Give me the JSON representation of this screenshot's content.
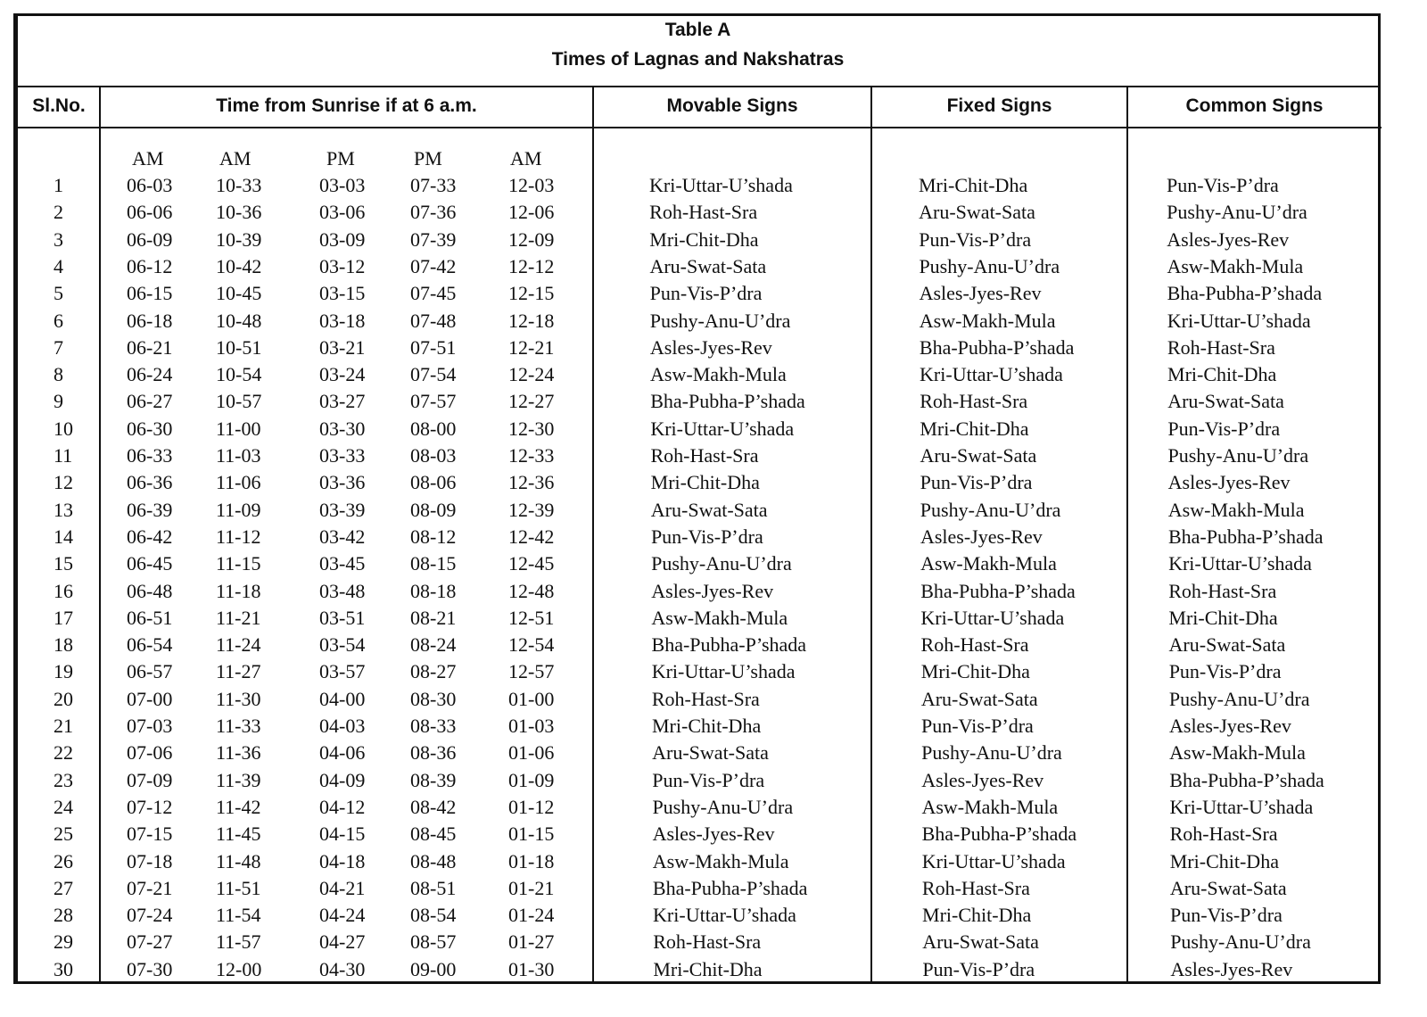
{
  "title": "Table  A",
  "subtitle": "Times of Lagnas and Nakshatras",
  "headers": {
    "slno": "Sl.No.",
    "time": "Time from Sunrise if at 6 a.m.",
    "movable": "Movable Signs",
    "fixed": "Fixed Signs",
    "common": "Common Signs"
  },
  "time_subheaders": [
    "AM",
    "AM",
    "PM",
    "PM",
    "AM"
  ],
  "rows": [
    [
      "1",
      "06-03",
      "10-33",
      "03-03",
      "07-33",
      "12-03",
      "Kri-Uttar-U’shada",
      "Mri-Chit-Dha",
      "Pun-Vis-P’dra"
    ],
    [
      "2",
      "06-06",
      "10-36",
      "03-06",
      "07-36",
      "12-06",
      "Roh-Hast-Sra",
      "Aru-Swat-Sata",
      "Pushy-Anu-U’dra"
    ],
    [
      "3",
      "06-09",
      "10-39",
      "03-09",
      "07-39",
      "12-09",
      "Mri-Chit-Dha",
      "Pun-Vis-P’dra",
      "Asles-Jyes-Rev"
    ],
    [
      "4",
      "06-12",
      "10-42",
      "03-12",
      "07-42",
      "12-12",
      "Aru-Swat-Sata",
      "Pushy-Anu-U’dra",
      "Asw-Makh-Mula"
    ],
    [
      "5",
      "06-15",
      "10-45",
      "03-15",
      "07-45",
      "12-15",
      "Pun-Vis-P’dra",
      "Asles-Jyes-Rev",
      "Bha-Pubha-P’shada"
    ],
    [
      "6",
      "06-18",
      "10-48",
      "03-18",
      "07-48",
      "12-18",
      "Pushy-Anu-U’dra",
      "Asw-Makh-Mula",
      "Kri-Uttar-U’shada"
    ],
    [
      "7",
      "06-21",
      "10-51",
      "03-21",
      "07-51",
      "12-21",
      "Asles-Jyes-Rev",
      "Bha-Pubha-P’shada",
      "Roh-Hast-Sra"
    ],
    [
      "8",
      "06-24",
      "10-54",
      "03-24",
      "07-54",
      "12-24",
      "Asw-Makh-Mula",
      "Kri-Uttar-U’shada",
      "Mri-Chit-Dha"
    ],
    [
      "9",
      "06-27",
      "10-57",
      "03-27",
      "07-57",
      "12-27",
      "Bha-Pubha-P’shada",
      "Roh-Hast-Sra",
      "Aru-Swat-Sata"
    ],
    [
      "10",
      "06-30",
      "11-00",
      "03-30",
      "08-00",
      "12-30",
      "Kri-Uttar-U’shada",
      "Mri-Chit-Dha",
      "Pun-Vis-P’dra"
    ],
    [
      "11",
      "06-33",
      "11-03",
      "03-33",
      "08-03",
      "12-33",
      "Roh-Hast-Sra",
      "Aru-Swat-Sata",
      "Pushy-Anu-U’dra"
    ],
    [
      "12",
      "06-36",
      "11-06",
      "03-36",
      "08-06",
      "12-36",
      "Mri-Chit-Dha",
      "Pun-Vis-P’dra",
      "Asles-Jyes-Rev"
    ],
    [
      "13",
      "06-39",
      "11-09",
      "03-39",
      "08-09",
      "12-39",
      "Aru-Swat-Sata",
      "Pushy-Anu-U’dra",
      "Asw-Makh-Mula"
    ],
    [
      "14",
      "06-42",
      "11-12",
      "03-42",
      "08-12",
      "12-42",
      "Pun-Vis-P’dra",
      "Asles-Jyes-Rev",
      "Bha-Pubha-P’shada"
    ],
    [
      "15",
      "06-45",
      "11-15",
      "03-45",
      "08-15",
      "12-45",
      "Pushy-Anu-U’dra",
      "Asw-Makh-Mula",
      "Kri-Uttar-U’shada"
    ],
    [
      "16",
      "06-48",
      "11-18",
      "03-48",
      "08-18",
      "12-48",
      "Asles-Jyes-Rev",
      "Bha-Pubha-P’shada",
      "Roh-Hast-Sra"
    ],
    [
      "17",
      "06-51",
      "11-21",
      "03-51",
      "08-21",
      "12-51",
      "Asw-Makh-Mula",
      "Kri-Uttar-U’shada",
      "Mri-Chit-Dha"
    ],
    [
      "18",
      "06-54",
      "11-24",
      "03-54",
      "08-24",
      "12-54",
      "Bha-Pubha-P’shada",
      "Roh-Hast-Sra",
      "Aru-Swat-Sata"
    ],
    [
      "19",
      "06-57",
      "11-27",
      "03-57",
      "08-27",
      "12-57",
      "Kri-Uttar-U’shada",
      "Mri-Chit-Dha",
      "Pun-Vis-P’dra"
    ],
    [
      "20",
      "07-00",
      "11-30",
      "04-00",
      "08-30",
      "01-00",
      "Roh-Hast-Sra",
      "Aru-Swat-Sata",
      "Pushy-Anu-U’dra"
    ],
    [
      "21",
      "07-03",
      "11-33",
      "04-03",
      "08-33",
      "01-03",
      "Mri-Chit-Dha",
      "Pun-Vis-P’dra",
      "Asles-Jyes-Rev"
    ],
    [
      "22",
      "07-06",
      "11-36",
      "04-06",
      "08-36",
      "01-06",
      "Aru-Swat-Sata",
      "Pushy-Anu-U’dra",
      "Asw-Makh-Mula"
    ],
    [
      "23",
      "07-09",
      "11-39",
      "04-09",
      "08-39",
      "01-09",
      "Pun-Vis-P’dra",
      "Asles-Jyes-Rev",
      "Bha-Pubha-P’shada"
    ],
    [
      "24",
      "07-12",
      "11-42",
      "04-12",
      "08-42",
      "01-12",
      "Pushy-Anu-U’dra",
      "Asw-Makh-Mula",
      "Kri-Uttar-U’shada"
    ],
    [
      "25",
      "07-15",
      "11-45",
      "04-15",
      "08-45",
      "01-15",
      "Asles-Jyes-Rev",
      "Bha-Pubha-P’shada",
      "Roh-Hast-Sra"
    ],
    [
      "26",
      "07-18",
      "11-48",
      "04-18",
      "08-48",
      "01-18",
      "Asw-Makh-Mula",
      "Kri-Uttar-U’shada",
      "Mri-Chit-Dha"
    ],
    [
      "27",
      "07-21",
      "11-51",
      "04-21",
      "08-51",
      "01-21",
      "Bha-Pubha-P’shada",
      "Roh-Hast-Sra",
      "Aru-Swat-Sata"
    ],
    [
      "28",
      "07-24",
      "11-54",
      "04-24",
      "08-54",
      "01-24",
      "Kri-Uttar-U’shada",
      "Mri-Chit-Dha",
      "Pun-Vis-P’dra"
    ],
    [
      "29",
      "07-27",
      "11-57",
      "04-27",
      "08-57",
      "01-27",
      "Roh-Hast-Sra",
      "Aru-Swat-Sata",
      "Pushy-Anu-U’dra"
    ],
    [
      "30",
      "07-30",
      "12-00",
      "04-30",
      "09-00",
      "01-30",
      "Mri-Chit-Dha",
      "Pun-Vis-P’dra",
      "Asles-Jyes-Rev"
    ]
  ]
}
